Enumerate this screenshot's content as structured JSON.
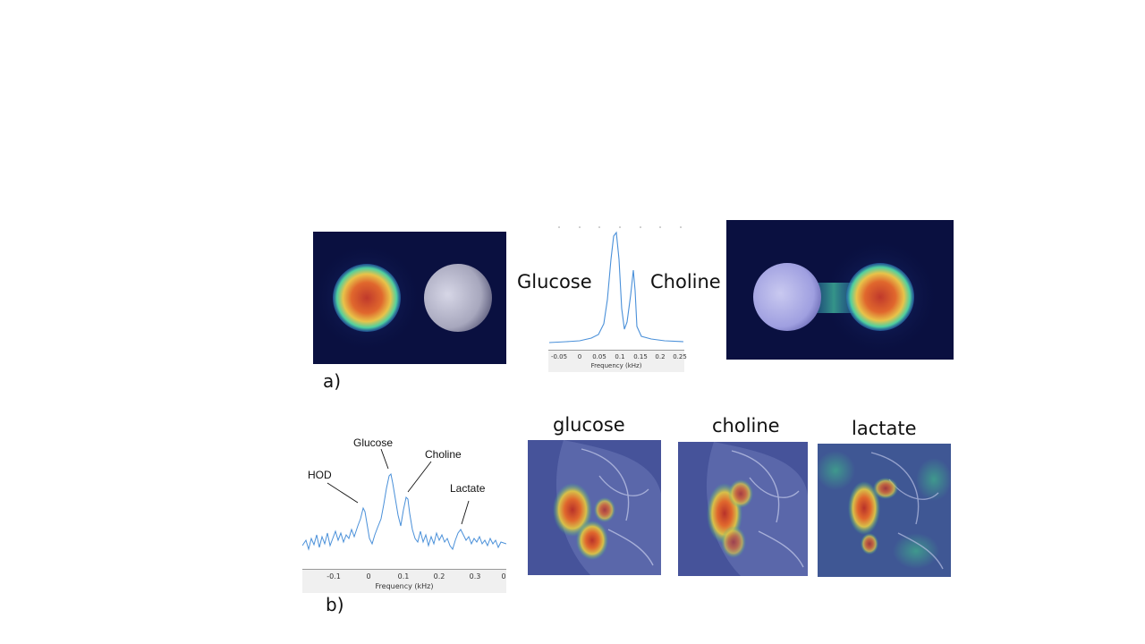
{
  "panel_a": {
    "letter": "a)",
    "label_left": "Glucose",
    "label_right": "Choline",
    "spectrum": {
      "xlabel": "Frequency (kHz)",
      "ticks": [
        "-0.05",
        "0",
        "0.05",
        "0.1",
        "0.15",
        "0.2",
        "0.25"
      ]
    }
  },
  "panel_b": {
    "letter": "b)",
    "spectrum": {
      "xlabel": "Frequency (kHz)",
      "ticks": [
        "-0.1",
        "0",
        "0.1",
        "0.2",
        "0.3",
        "0"
      ],
      "annotations": [
        "HOD",
        "Glucose",
        "Choline",
        "Lactate"
      ]
    },
    "map_titles": [
      "glucose",
      "choline",
      "lactate"
    ]
  },
  "colors": {
    "spectrum_line": "#4a90d9",
    "map_background": "#0a1040",
    "hot": "#c0392b"
  }
}
